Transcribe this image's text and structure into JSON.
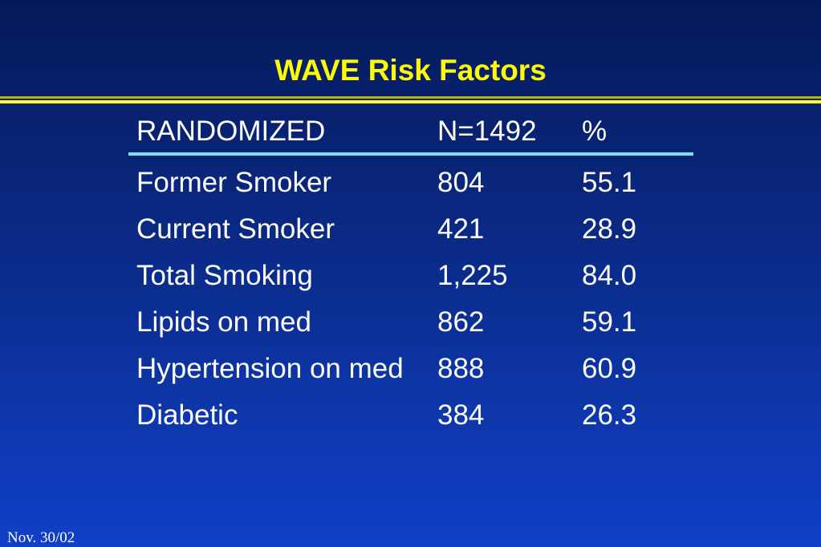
{
  "slide": {
    "title": "WAVE Risk Factors",
    "footer_date": "Nov. 30/02"
  },
  "table": {
    "headers": [
      "RANDOMIZED",
      "N=1492",
      "%"
    ],
    "rows": [
      {
        "factor": "Former Smoker",
        "n": "804",
        "pct": "55.1"
      },
      {
        "factor": "Current Smoker",
        "n": "421",
        "pct": "28.9"
      },
      {
        "factor": "Total Smoking",
        "n": "1,225",
        "pct": "84.0"
      },
      {
        "factor": "Lipids on med",
        "n": "862",
        "pct": "59.1"
      },
      {
        "factor": "Hypertension on med",
        "n": "888",
        "pct": "60.9"
      },
      {
        "factor": "Diabetic",
        "n": "384",
        "pct": "26.3"
      }
    ]
  },
  "colors": {
    "title": "#ffff00",
    "text": "#ffffff",
    "header_rule": "#7fe0ff",
    "background_top": "#061a5a",
    "background_bottom": "#1040c8"
  }
}
